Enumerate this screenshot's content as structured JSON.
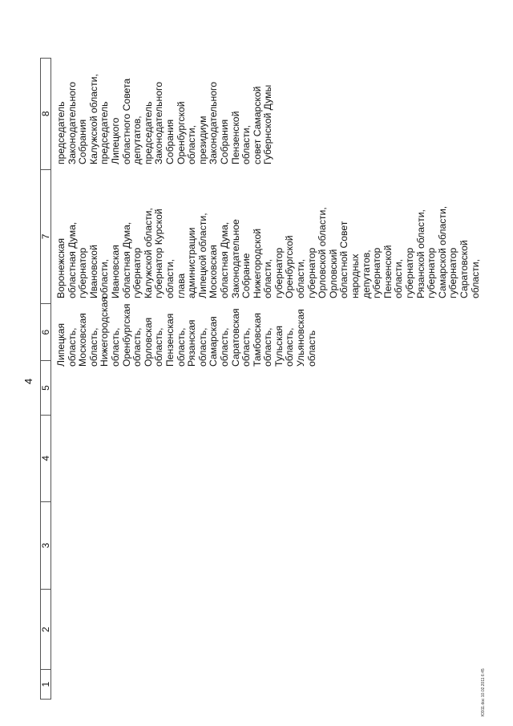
{
  "page_number": "4",
  "header_columns": [
    "1",
    "2",
    "3",
    "4",
    "5",
    "6",
    "7",
    "8"
  ],
  "column6": [
    "Липецкая",
    "область,",
    "Московская",
    "область,",
    "Нижегородская",
    "область,",
    "Оренбургская",
    "область,",
    "Орловская",
    "область,",
    "Пензенская",
    "область,",
    "Рязанская",
    "область,",
    "Самарская",
    "область,",
    "Саратовская",
    "область,",
    "Тамбовская",
    "область,",
    "Тульская",
    "область,",
    "Ульяновская",
    "область"
  ],
  "column7": [
    "Воронежская",
    "областная Дума,",
    "губернатор",
    "Ивановской",
    "области,",
    "Ивановская",
    "областная Дума,",
    "губернатор",
    "Калужской области,",
    "губернатор Курской",
    "области,",
    "глава",
    "администрации",
    "Липецкой области,",
    "Московская",
    "областная Дума,",
    "Законодательное",
    "Собрание",
    "Нижегородской",
    "области,",
    "губернатор",
    "Оренбургской",
    "области,",
    "губернатор",
    "Орловской области,",
    "Орловский",
    "областной Совет",
    "народных",
    "депутатов,",
    "губернатор",
    "Пензенской",
    "области,",
    "губернатор",
    "Рязанской области,",
    "губернатор",
    "Самарской области,",
    "губернатор",
    "Саратовской",
    "области,"
  ],
  "column8": [
    "председатель",
    "Законодательного",
    "Собрания",
    "Калужской области,",
    "председатель",
    "Липецкого",
    "областного Совета",
    "депутатов,",
    "председатель",
    "Законодательного",
    "Собрания",
    "Оренбургской",
    "области,",
    "президиум",
    "Законодательного",
    "Собрания",
    "Пензенской",
    "области,",
    "совет Самарской",
    "Губернской Думы"
  ],
  "footer": "Ю911.doc 10.02.2011 6:45"
}
